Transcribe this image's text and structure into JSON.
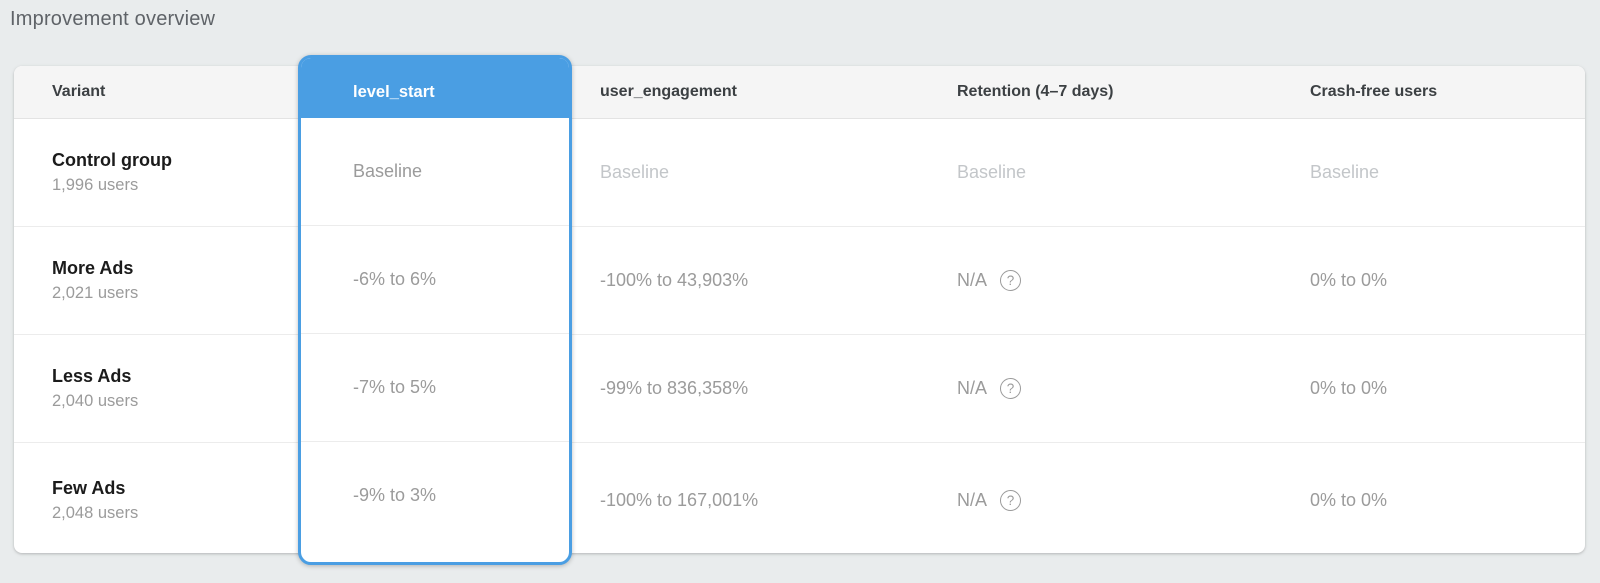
{
  "page": {
    "title": "Improvement overview",
    "background_color": "#e9eced",
    "accent_blue": "#4a9ee3"
  },
  "table": {
    "columns": [
      {
        "key": "variant",
        "label": "Variant",
        "selected": false
      },
      {
        "key": "level_start",
        "label": "level_start",
        "selected": true
      },
      {
        "key": "user_engagement",
        "label": "user_engagement",
        "selected": false
      },
      {
        "key": "retention",
        "label": "Retention (4–7 days)",
        "selected": false
      },
      {
        "key": "crash_free",
        "label": "Crash-free users",
        "selected": false
      }
    ],
    "help_icon_glyph": "?",
    "rows": [
      {
        "variant": "Control group",
        "users": "1,996 users",
        "level_start": "Baseline",
        "user_engagement": "Baseline",
        "retention": "Baseline",
        "crash_free": "Baseline",
        "is_baseline": true
      },
      {
        "variant": "More Ads",
        "users": "2,021 users",
        "level_start": "-6% to 6%",
        "user_engagement": "-100% to 43,903%",
        "retention": "N/A",
        "crash_free": "0% to 0%",
        "is_baseline": false
      },
      {
        "variant": "Less Ads",
        "users": "2,040 users",
        "level_start": "-7% to 5%",
        "user_engagement": "-99% to 836,358%",
        "retention": "N/A",
        "crash_free": "0% to 0%",
        "is_baseline": false
      },
      {
        "variant": "Few Ads",
        "users": "2,048 users",
        "level_start": "-9% to 3%",
        "user_engagement": "-100% to 167,001%",
        "retention": "N/A",
        "crash_free": "0% to 0%",
        "is_baseline": false
      }
    ]
  }
}
